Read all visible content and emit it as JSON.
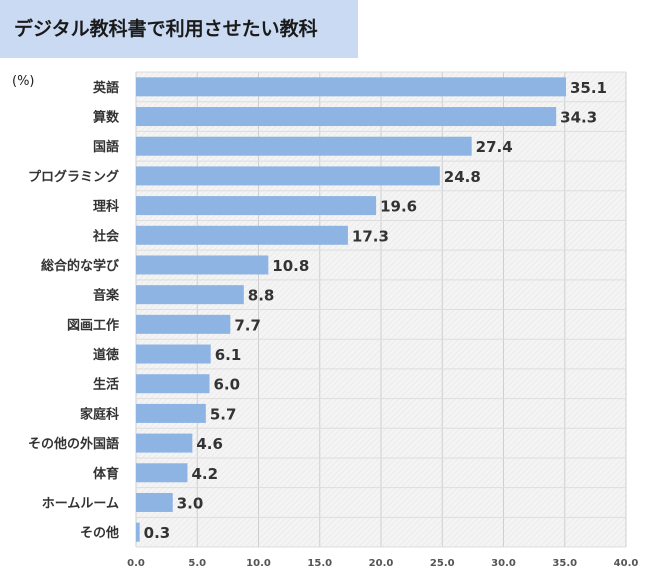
{
  "title": "デジタル教科書で利用させたい教科",
  "unit_label": "(%)",
  "colors": {
    "bar": "#8eb4e3",
    "title_bg": "#c9daf2",
    "plot_bg": "#f4f4f4"
  },
  "chart_data": {
    "type": "bar",
    "orientation": "horizontal",
    "title": "デジタル教科書で利用させたい教科",
    "ylabel": "(%)",
    "categories": [
      "英語",
      "算数",
      "国語",
      "プログラミング",
      "理科",
      "社会",
      "総合的な学び",
      "音楽",
      "図画工作",
      "道徳",
      "生活",
      "家庭科",
      "その他の外国語",
      "体育",
      "ホームルーム",
      "その他"
    ],
    "values": [
      35.1,
      34.3,
      27.4,
      24.8,
      19.6,
      17.3,
      10.8,
      8.8,
      7.7,
      6.1,
      6.0,
      5.7,
      4.6,
      4.2,
      3.0,
      0.3
    ],
    "value_labels": [
      "35.1",
      "34.3",
      "27.4",
      "24.8",
      "19.6",
      "17.3",
      "10.8",
      "8.8",
      "7.7",
      "6.1",
      "6.0",
      "5.7",
      "4.6",
      "4.2",
      "3.0",
      "0.3"
    ],
    "xlim": [
      0,
      40
    ],
    "xticks": [
      "0.0",
      "5.0",
      "10.0",
      "15.0",
      "20.0",
      "25.0",
      "30.0",
      "35.0",
      "40.0"
    ],
    "grid": true,
    "legend": "none"
  }
}
